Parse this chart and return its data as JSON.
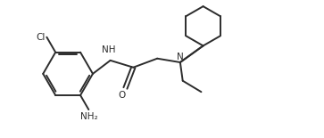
{
  "bg_color": "#ffffff",
  "line_color": "#2c2c2c",
  "line_width": 1.4,
  "font_size_label": 7.5,
  "figsize": [
    3.63,
    1.55
  ],
  "dpi": 100,
  "xlim": [
    0,
    10
  ],
  "ylim": [
    0,
    4.3
  ]
}
